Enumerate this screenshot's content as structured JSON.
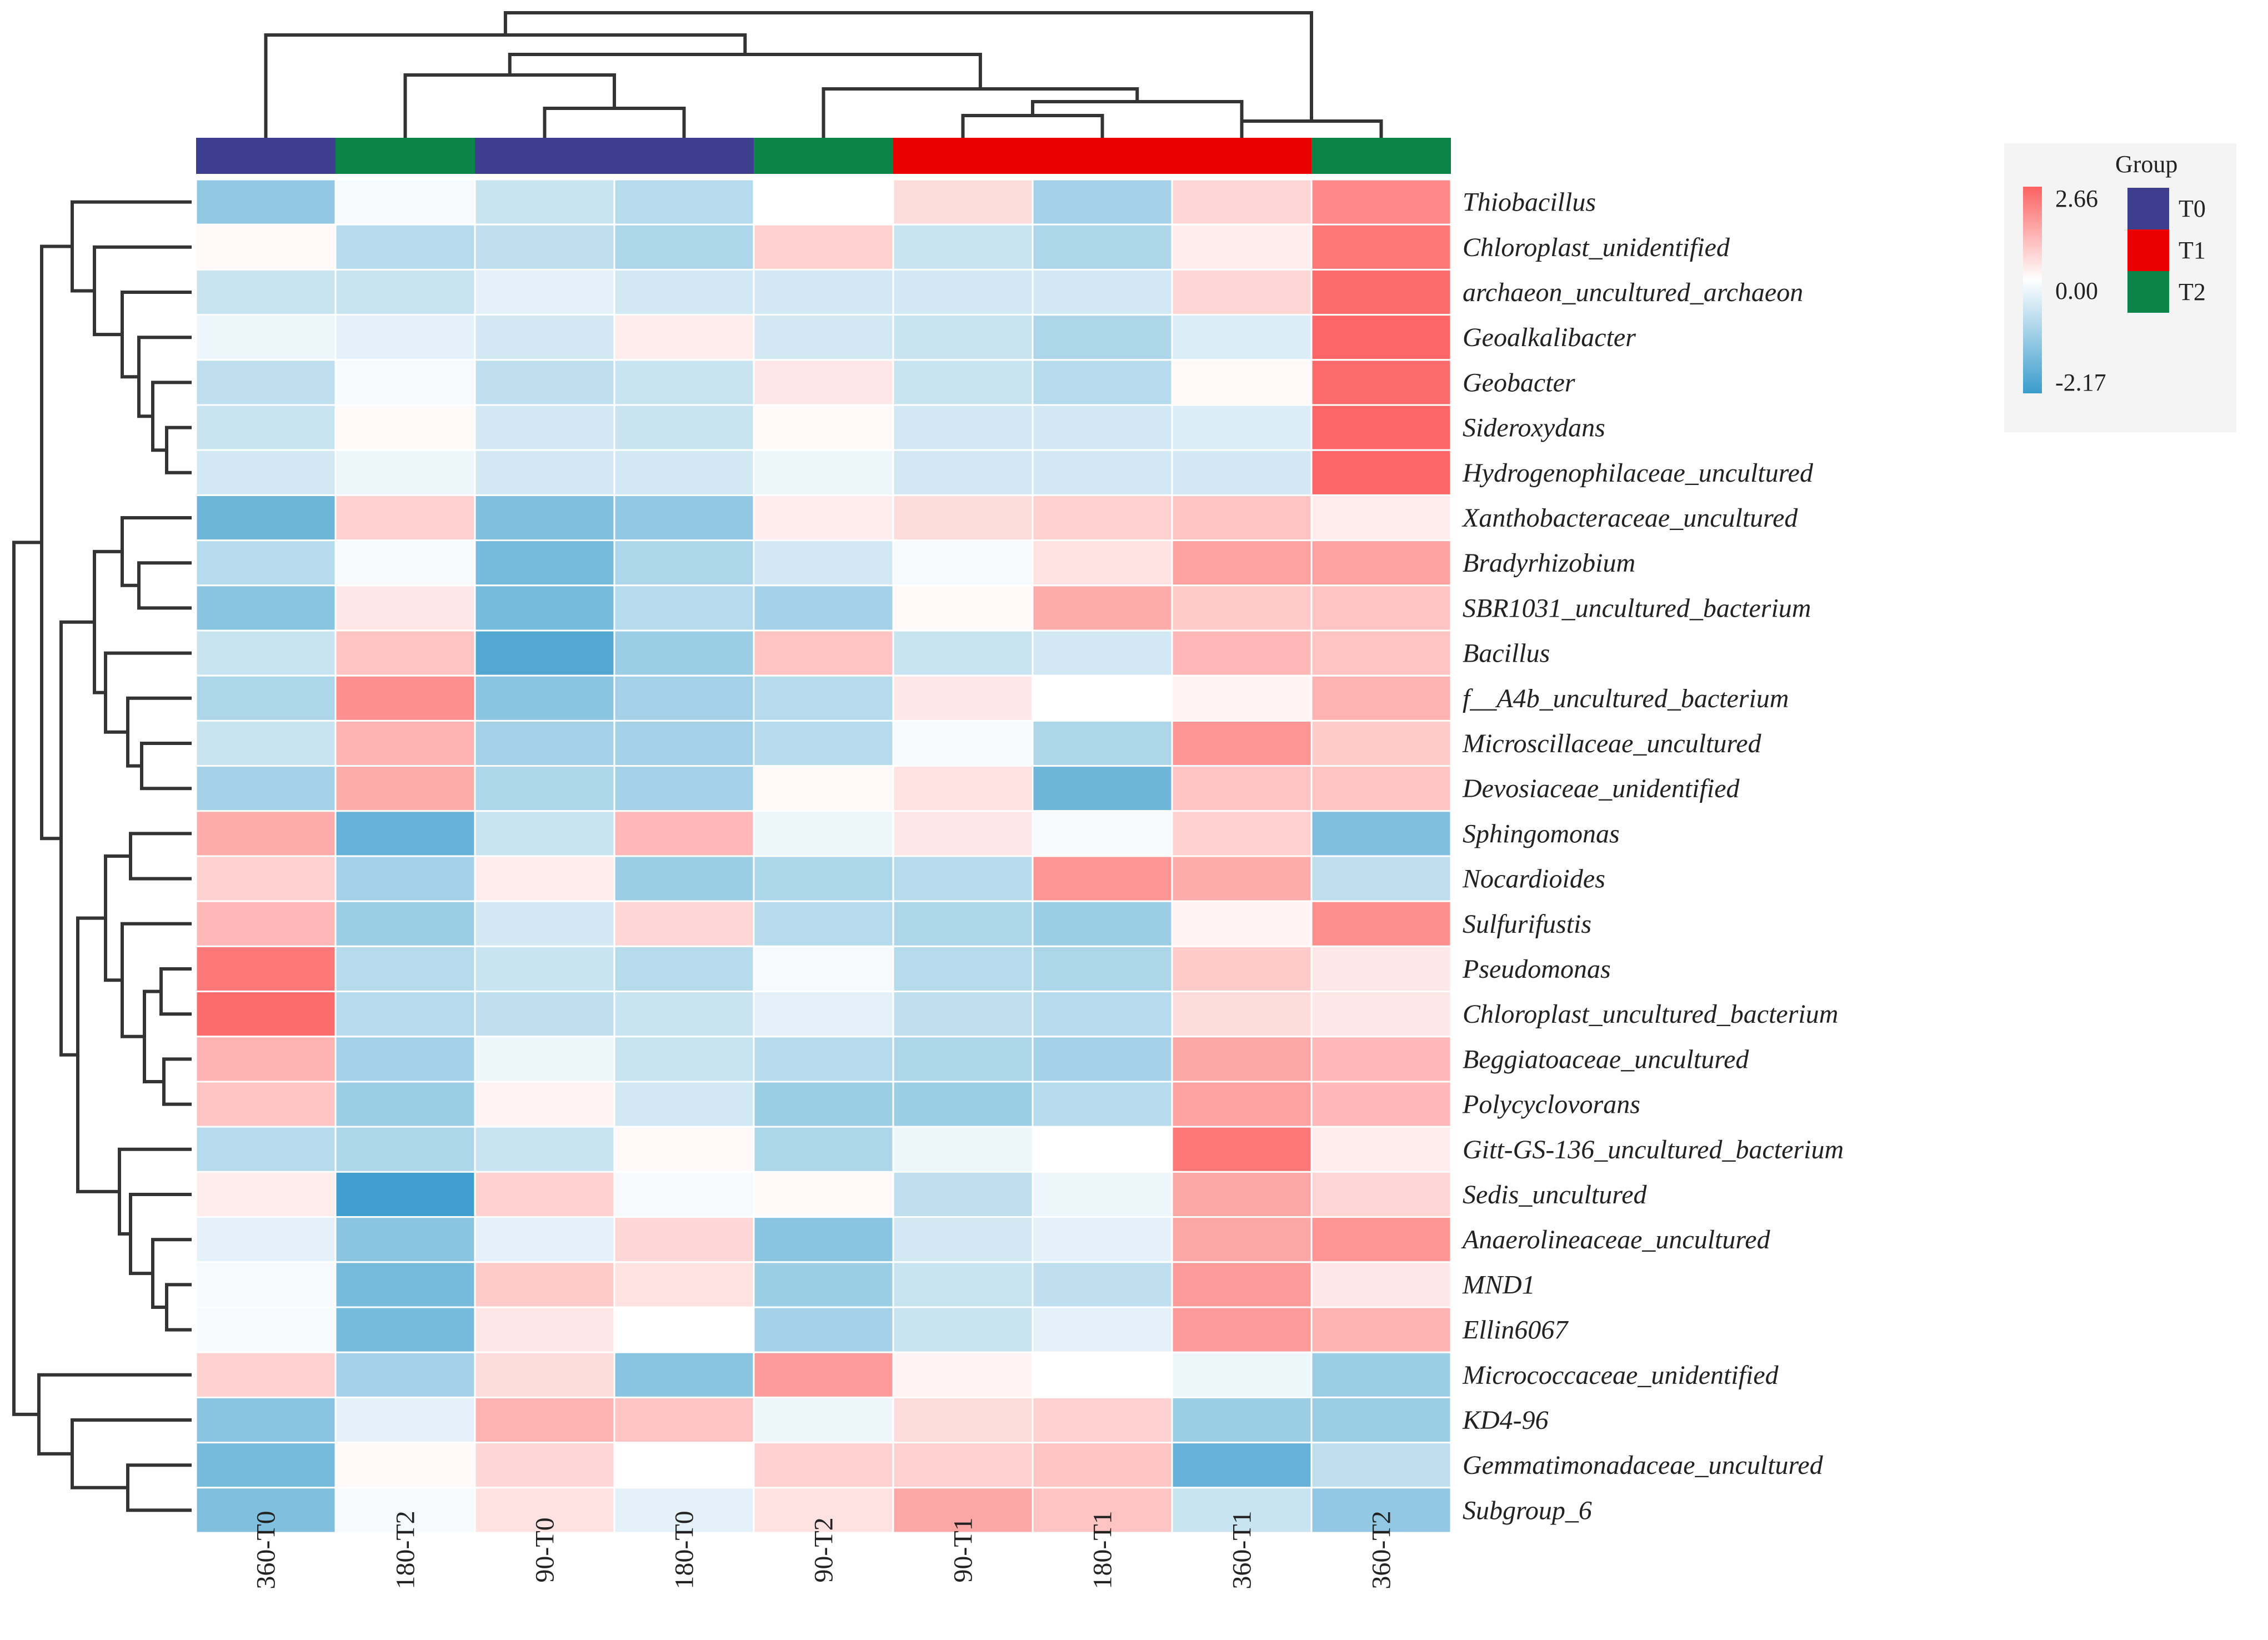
{
  "chart_data": {
    "type": "heatmap",
    "title": "",
    "columns": [
      "360-T0",
      "180-T2",
      "90-T0",
      "180-T0",
      "90-T2",
      "90-T1",
      "180-T1",
      "360-T1",
      "360-T2"
    ],
    "column_groups": [
      "T0",
      "T2",
      "T0",
      "T0",
      "T2",
      "T1",
      "T1",
      "T1",
      "T2"
    ],
    "rows": [
      "Thiobacillus",
      "Chloroplast_unidentified",
      "archaeon_uncultured_archaeon",
      "Geoalkalibacter",
      "Geobacter",
      "Sideroxydans",
      "Hydrogenophilaceae_uncultured",
      "Xanthobacteraceae_uncultured",
      "Bradyrhizobium",
      "SBR1031_uncultured_bacterium",
      "Bacillus",
      "f__A4b_uncultured_bacterium",
      "Microscillaceae_uncultured",
      "Devosiaceae_unidentified",
      "Sphingomonas",
      "Nocardioides",
      "Sulfurifustis",
      "Pseudomonas",
      "Chloroplast_uncultured_bacterium",
      "Beggiatoaceae_uncultured",
      "Polycyclovorans",
      "Gitt-GS-136_uncultured_bacterium",
      "Sedis_uncultured",
      "Anaerolineaceae_uncultured",
      "MND1",
      "Ellin6067",
      "Micrococcaceae_unidentified",
      "KD4-96",
      "Gemmatimonadaceae_uncultured",
      "Subgroup_6"
    ],
    "values": [
      [
        -1.2,
        -0.1,
        -0.6,
        -0.8,
        0.0,
        0.6,
        -1.0,
        0.7,
        2.0
      ],
      [
        0.1,
        -0.8,
        -0.7,
        -0.9,
        0.8,
        -0.6,
        -0.9,
        0.3,
        2.3
      ],
      [
        -0.6,
        -0.6,
        -0.3,
        -0.5,
        -0.5,
        -0.5,
        -0.5,
        0.7,
        2.5
      ],
      [
        -0.2,
        -0.3,
        -0.5,
        0.3,
        -0.5,
        -0.6,
        -0.9,
        -0.4,
        2.6
      ],
      [
        -0.7,
        -0.1,
        -0.7,
        -0.6,
        0.4,
        -0.6,
        -0.8,
        0.1,
        2.5
      ],
      [
        -0.6,
        0.1,
        -0.5,
        -0.6,
        0.1,
        -0.5,
        -0.5,
        -0.4,
        2.6
      ],
      [
        -0.5,
        -0.2,
        -0.5,
        -0.5,
        -0.2,
        -0.5,
        -0.5,
        -0.5,
        2.6
      ],
      [
        -1.6,
        0.8,
        -1.4,
        -1.2,
        0.3,
        0.6,
        0.8,
        1.0,
        0.3
      ],
      [
        -0.8,
        -0.1,
        -1.5,
        -0.9,
        -0.5,
        -0.1,
        0.5,
        1.6,
        1.6
      ],
      [
        -1.3,
        0.4,
        -1.5,
        -0.8,
        -1.0,
        0.1,
        1.4,
        0.9,
        1.0
      ],
      [
        -0.6,
        1.0,
        -1.9,
        -1.1,
        1.0,
        -0.6,
        -0.5,
        1.2,
        1.0
      ],
      [
        -0.9,
        1.9,
        -1.3,
        -1.0,
        -0.8,
        0.4,
        0.0,
        0.2,
        1.3
      ],
      [
        -0.6,
        1.3,
        -1.0,
        -1.0,
        -0.8,
        -0.1,
        -0.9,
        1.8,
        0.9
      ],
      [
        -1.0,
        1.4,
        -0.9,
        -1.0,
        0.1,
        0.5,
        -1.6,
        1.0,
        1.0
      ],
      [
        1.4,
        -1.7,
        -0.6,
        1.2,
        -0.2,
        0.4,
        -0.1,
        0.8,
        -1.4
      ],
      [
        0.8,
        -1.0,
        0.3,
        -1.1,
        -0.9,
        -0.8,
        1.8,
        1.4,
        -0.7
      ],
      [
        1.2,
        -1.1,
        -0.5,
        0.7,
        -0.8,
        -0.9,
        -1.1,
        0.2,
        1.9
      ],
      [
        2.3,
        -0.8,
        -0.6,
        -0.8,
        -0.1,
        -0.8,
        -0.9,
        0.9,
        0.4
      ],
      [
        2.5,
        -0.8,
        -0.7,
        -0.6,
        -0.3,
        -0.7,
        -0.8,
        0.6,
        0.4
      ],
      [
        1.3,
        -1.0,
        -0.2,
        -0.6,
        -0.8,
        -0.9,
        -1.0,
        1.5,
        1.2
      ],
      [
        1.0,
        -1.1,
        0.2,
        -0.5,
        -1.1,
        -1.1,
        -0.8,
        1.6,
        1.2
      ],
      [
        -0.8,
        -0.9,
        -0.6,
        0.1,
        -0.9,
        -0.2,
        0.0,
        2.3,
        0.3
      ],
      [
        0.3,
        -2.1,
        0.8,
        -0.1,
        0.1,
        -0.7,
        -0.2,
        1.5,
        0.7
      ],
      [
        -0.3,
        -1.3,
        -0.3,
        0.7,
        -1.3,
        -0.5,
        -0.3,
        1.5,
        1.8
      ],
      [
        -0.1,
        -1.5,
        0.9,
        0.5,
        -1.1,
        -0.6,
        -0.7,
        1.7,
        0.4
      ],
      [
        -0.1,
        -1.5,
        0.4,
        0.0,
        -1.0,
        -0.6,
        -0.3,
        1.7,
        1.3
      ],
      [
        0.8,
        -1.0,
        0.6,
        -1.3,
        1.7,
        0.2,
        0.0,
        -0.2,
        -1.1
      ],
      [
        -1.3,
        -0.3,
        1.3,
        1.0,
        -0.2,
        0.6,
        0.8,
        -1.1,
        -1.1
      ],
      [
        -1.5,
        0.1,
        0.7,
        0.0,
        0.8,
        0.8,
        1.0,
        -1.7,
        -0.7
      ],
      [
        -1.4,
        -0.1,
        0.5,
        -0.3,
        0.5,
        1.5,
        1.0,
        -0.6,
        -1.2
      ]
    ],
    "color_scale": {
      "min": -2.17,
      "mid": 0.0,
      "max": 2.66,
      "min_color": "#3a9ccc",
      "mid_color": "#ffffff",
      "max_color": "#fc6262"
    },
    "legend_scale_labels": [
      "2.66",
      "0.00",
      "-2.17"
    ],
    "legend": {
      "title": "Group",
      "entries": [
        {
          "name": "T0",
          "color": "#3d3f8e"
        },
        {
          "name": "T1",
          "color": "#ea0000"
        },
        {
          "name": "T2",
          "color": "#0b8449"
        }
      ]
    }
  }
}
